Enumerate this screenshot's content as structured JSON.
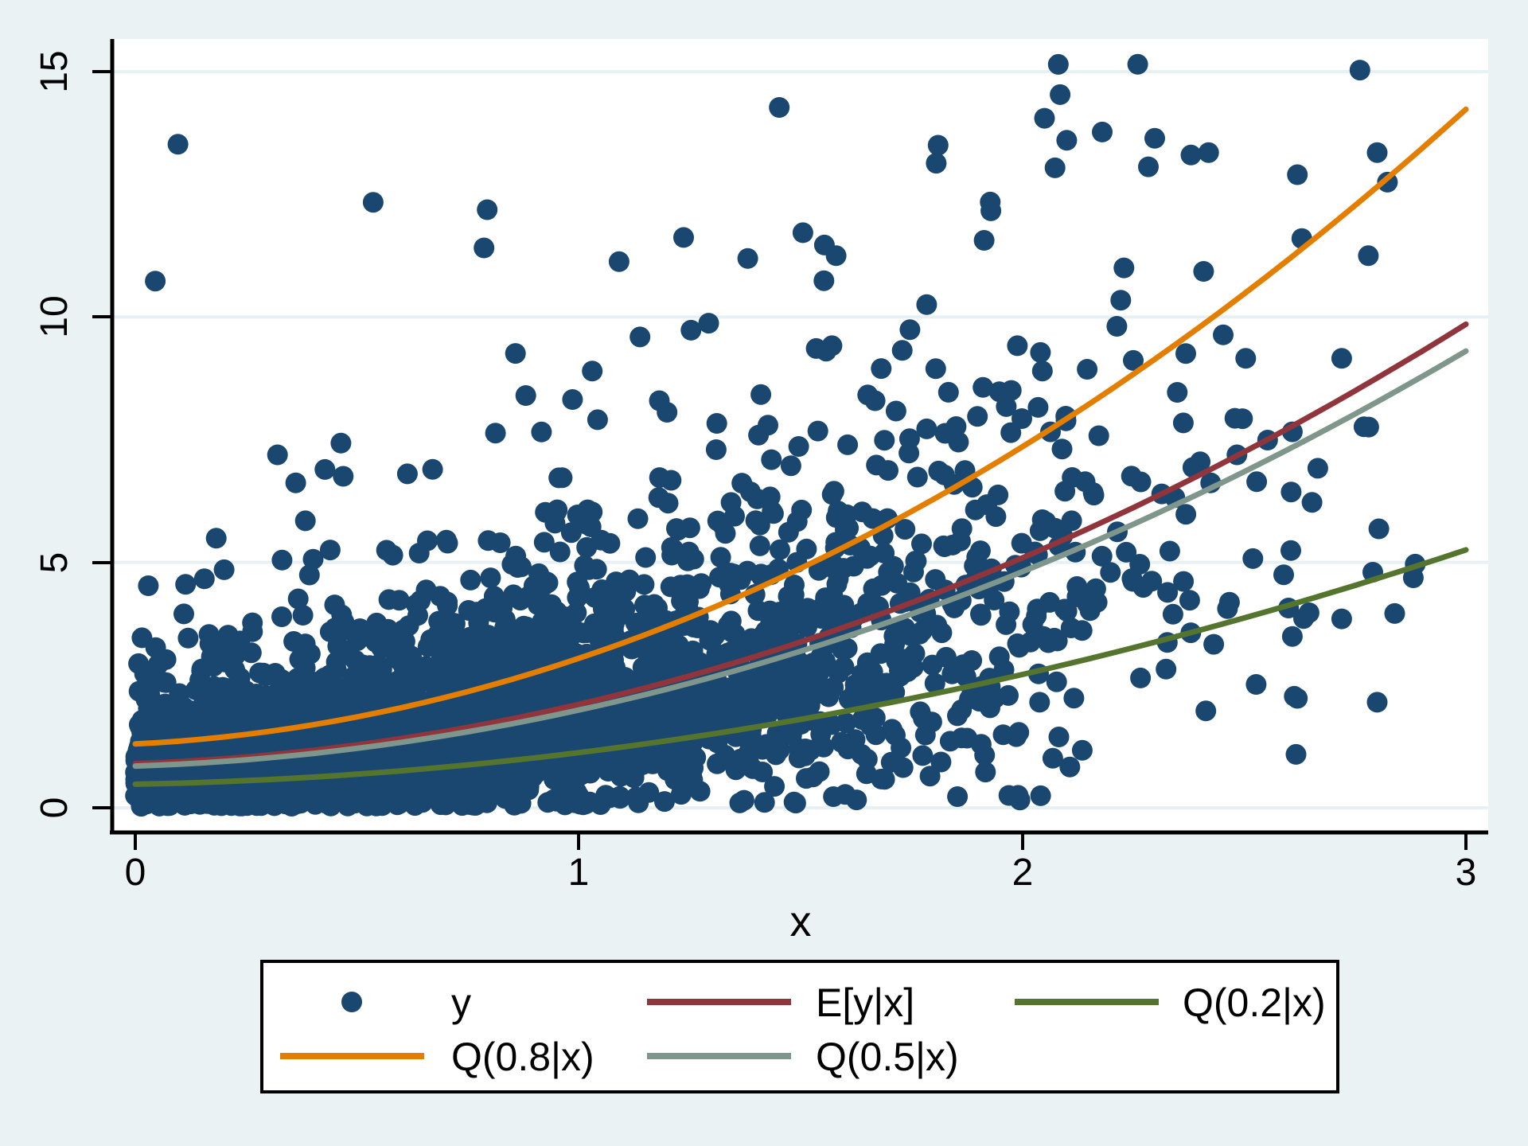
{
  "window": {
    "title": ""
  },
  "colors": {
    "background": "#eaf2f3",
    "plot_background": "#ffffff",
    "gridline": "#e7f0f2",
    "axis": "#000000",
    "scatter": "#1a476f",
    "mean_line": "#90353b",
    "q20_line": "#55752f",
    "q80_line": "#e37e00",
    "q50_line": "#7e968b"
  },
  "chart_data": {
    "type": "scatter",
    "title": "",
    "xlabel": "x",
    "ylabel": "",
    "xlim": [
      0,
      3.05
    ],
    "ylim": [
      -0.5,
      15.66
    ],
    "x_ticks": [
      0,
      1,
      2,
      3
    ],
    "y_ticks": [
      0,
      5,
      10,
      15
    ],
    "x_tick_labels": [
      "0",
      "1",
      "2",
      "3"
    ],
    "y_tick_labels": [
      "0",
      "5",
      "10",
      "15"
    ],
    "grid": "horizontal-only",
    "legend_position": "below-plot",
    "scatter": {
      "name": "y",
      "color": "#1a476f",
      "marker_radius_px": 13,
      "n": 4000,
      "seed": 1234,
      "x_model": "x = |Normal(0,0.92)| truncated at 2.92",
      "y_model": "y = 0.85*(1 + 0.355x + 0.987x^2) * multiplicative noise (mixture: 78% lognormal s=0.5, 14% lognormal s=0.95, 8% low-uniform)",
      "y_max_visible": 15.2,
      "notable_points": [
        [
          2.26,
          15.15
        ],
        [
          2.18,
          13.77
        ],
        [
          2.38,
          13.3
        ],
        [
          2.42,
          13.35
        ],
        [
          1.81,
          13.5
        ],
        [
          2.05,
          14.05
        ],
        [
          2.1,
          13.6
        ],
        [
          2.62,
          12.9
        ],
        [
          2.63,
          11.6
        ],
        [
          2.8,
          13.35
        ],
        [
          2.78,
          11.25
        ],
        [
          1.58,
          11.25
        ],
        [
          2.79,
          4.8
        ],
        [
          2.6,
          4.07
        ],
        [
          2.62,
          2.23
        ],
        [
          2.8,
          2.15
        ],
        [
          2.72,
          3.85
        ]
      ]
    },
    "curves_base_poly_coeffs": [
      1,
      0.355,
      0.987
    ],
    "curves": [
      {
        "name": "Q(0.8|x)",
        "color": "#e37e00",
        "k": 1.3,
        "x_start": 0,
        "x_end": 3,
        "y_at_x0": 1.3,
        "y_at_x3": 14.2
      },
      {
        "name": "E[y|x]",
        "color": "#90353b",
        "k": 0.9,
        "x_start": 0,
        "x_end": 3,
        "y_at_x0": 0.9,
        "y_at_x3": 9.9
      },
      {
        "name": "Q(0.5|x)",
        "color": "#7e968b",
        "k": 0.85,
        "x_start": 0,
        "x_end": 3,
        "y_at_x0": 0.85,
        "y_at_x3": 9.3
      },
      {
        "name": "Q(0.2|x)",
        "color": "#55752f",
        "k": 0.48,
        "x_start": 0,
        "x_end": 3,
        "y_at_x0": 0.48,
        "y_at_x3": 5.3
      }
    ]
  },
  "axis": {
    "x_title": "x"
  },
  "legend": {
    "entries": [
      {
        "label": "y",
        "key": "marker",
        "color": "#1a476f"
      },
      {
        "label": "E[y|x]",
        "key": "line",
        "color": "#90353b"
      },
      {
        "label": "Q(0.2|x)",
        "key": "line",
        "color": "#55752f"
      },
      {
        "label": "Q(0.8|x)",
        "key": "line",
        "color": "#e37e00"
      },
      {
        "label": "Q(0.5|x)",
        "key": "line",
        "color": "#7e968b"
      }
    ]
  }
}
